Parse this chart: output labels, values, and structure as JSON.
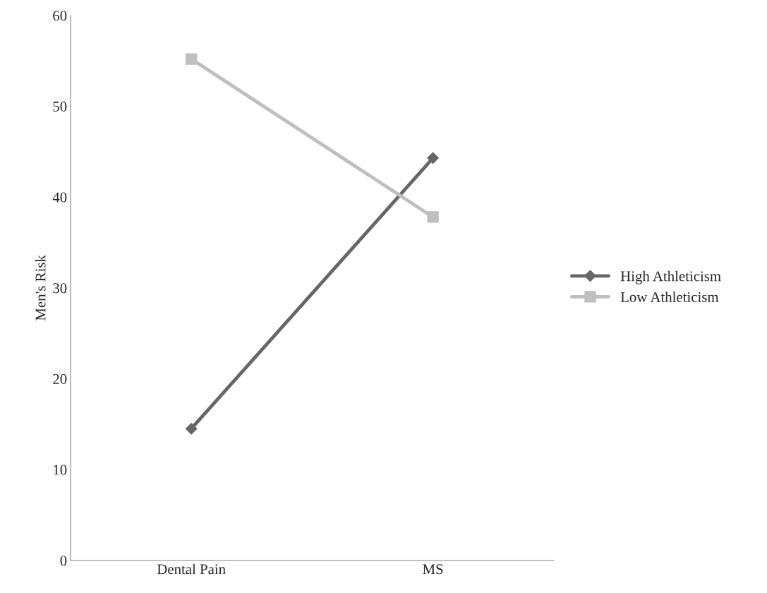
{
  "chart_data": {
    "type": "line",
    "ylabel": "Men's Risk",
    "categories": [
      "Dental Pain",
      "MS"
    ],
    "series": [
      {
        "name": "High Athleticism",
        "color": "#666666",
        "marker": "diamond",
        "values": [
          14.5,
          44.3
        ]
      },
      {
        "name": "Low Athleticism",
        "color": "#bfbfbf",
        "marker": "square",
        "values": [
          55.2,
          37.8
        ]
      }
    ],
    "ylim": [
      0,
      60
    ],
    "yticks": [
      0,
      10,
      20,
      30,
      40,
      50,
      60
    ],
    "grid": false,
    "legend": "right",
    "line_style": "solid"
  }
}
